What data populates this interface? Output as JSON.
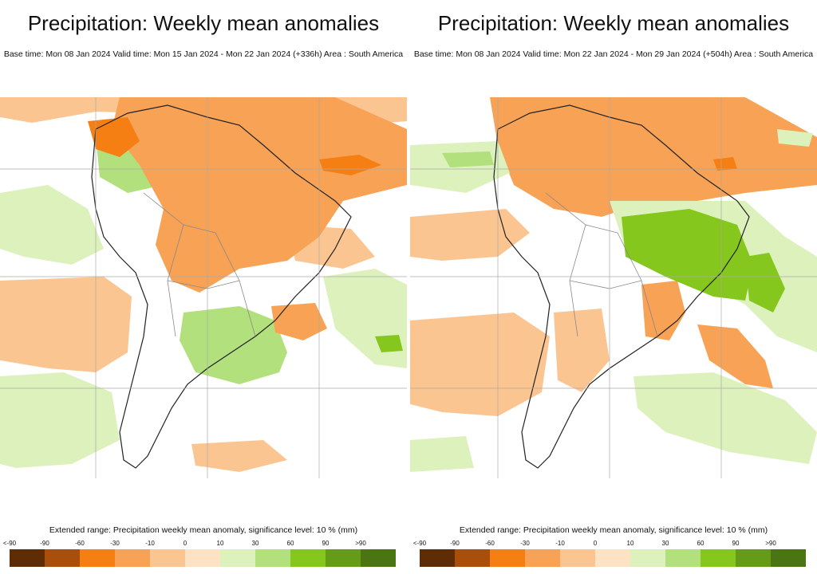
{
  "panels": [
    {
      "title": "Precipitation: Weekly mean anomalies",
      "subtitle": "Base time: Mon 08 Jan 2024 Valid time: Mon 15 Jan 2024 - Mon 22 Jan 2024 (+336h) Area : South America",
      "map_region": "South America",
      "legend": {
        "title": "Extended range: Precipitation weekly mean anomaly, significance level: 10 % (mm)"
      }
    },
    {
      "title": "Precipitation: Weekly mean anomalies",
      "subtitle": "Base time: Mon 08 Jan 2024 Valid time: Mon 22 Jan 2024 - Mon 29 Jan 2024 (+504h) Area : South America",
      "map_region": "South America",
      "legend": {
        "title": "Extended range: Precipitation weekly mean anomaly, significance level: 10 % (mm)"
      }
    }
  ],
  "legend_ticks": [
    "<-90",
    "-90",
    "-60",
    "-30",
    "-10",
    "0",
    "10",
    "30",
    "60",
    "90",
    ">90"
  ],
  "legend_colors": [
    "#5e2c05",
    "#a94f0b",
    "#f57f12",
    "#f7a255",
    "#fbc592",
    "#fde3c4",
    "#ddf1bd",
    "#b2e07c",
    "#86c71e",
    "#669b18",
    "#4a7512"
  ],
  "map_colors": {
    "ocean": "#ffffff",
    "strong_dry": "#f57f12",
    "dry": "#f7a255",
    "light_dry": "#fbc592",
    "light_wet": "#ddf1bd",
    "wet": "#b2e07c",
    "strong_wet": "#86c71e",
    "very_wet": "#669b18",
    "coast": "#222222",
    "border": "#888888",
    "grid": "#aaaaaa"
  }
}
